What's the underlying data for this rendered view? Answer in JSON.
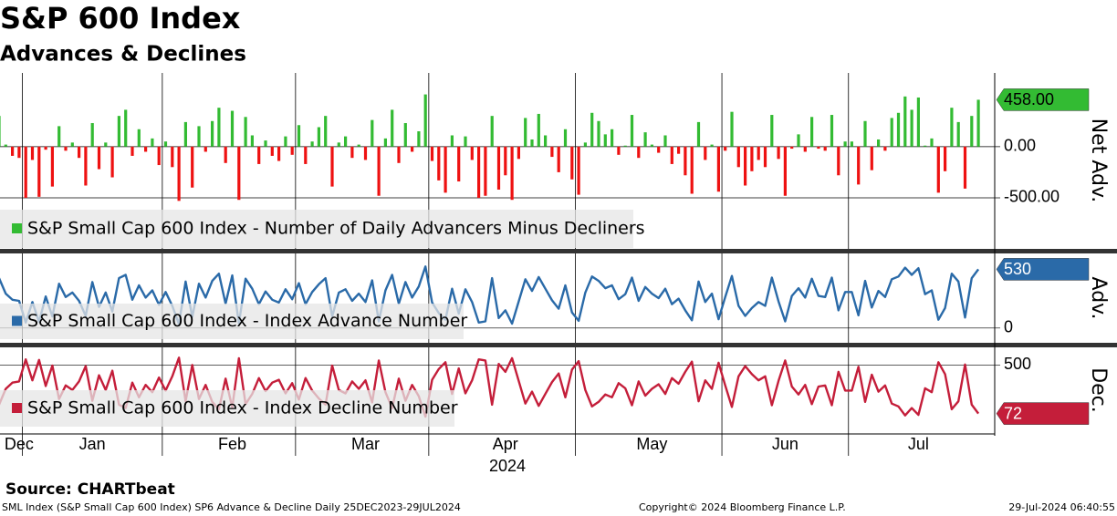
{
  "header": {
    "title": "S&P 600 Index",
    "subtitle": "Advances & Declines"
  },
  "footer": {
    "source": "Source: CHARTbeat",
    "left": "SML Index (S&P Small Cap 600 Index) SP6 Advance & Decline  Daily 25DEC2023-29JUL2024",
    "center": "Copyright© 2024 Bloomberg Finance L.P.",
    "right": "29-Jul-2024 06:40:55"
  },
  "chart_data": [
    {
      "type": "bar",
      "axis_title": "Net Adv.",
      "ylim": [
        -990,
        720
      ],
      "yticks": [
        {
          "value": 0,
          "label": "0.00"
        },
        {
          "value": -500,
          "label": "-500.00"
        }
      ],
      "grid": true,
      "series": [
        {
          "name": "S&P Small Cap 600 Index - Number of Daily Advancers Minus Decliners",
          "color": "#33bb33",
          "negative_color": "#ee1111",
          "label_color": "#000000",
          "values": [
            300,
            20,
            -90,
            -110,
            -500,
            -130,
            -490,
            -30,
            -390,
            200,
            -40,
            40,
            -110,
            -380,
            230,
            -220,
            40,
            -300,
            300,
            360,
            -90,
            170,
            -50,
            80,
            -180,
            50,
            -200,
            -530,
            240,
            -400,
            200,
            -50,
            250,
            380,
            -160,
            350,
            -520,
            290,
            110,
            -170,
            60,
            -90,
            -140,
            100,
            -80,
            210,
            -170,
            50,
            190,
            300,
            -390,
            40,
            100,
            -110,
            20,
            -130,
            260,
            -480,
            80,
            360,
            -160,
            230,
            -50,
            150,
            510,
            -140,
            -330,
            -450,
            110,
            -340,
            100,
            -130,
            -500,
            -480,
            300,
            -420,
            -280,
            -520,
            -120,
            280,
            70,
            320,
            110,
            -100,
            -250,
            170,
            -320,
            -470,
            40,
            330,
            250,
            120,
            170,
            -80,
            10,
            310,
            -110,
            140,
            20,
            -60,
            110,
            -170,
            -70,
            -280,
            -460,
            240,
            -130,
            20,
            -440,
            -40,
            340,
            -200,
            -380,
            -240,
            -130,
            -200,
            310,
            -120,
            -480,
            -20,
            120,
            -50,
            290,
            -20,
            -40,
            310,
            -280,
            50,
            50,
            -370,
            250,
            -230,
            70,
            -40,
            280,
            330,
            490,
            360,
            480,
            10,
            80,
            -450,
            -240,
            380,
            240,
            -410,
            300,
            458
          ],
          "value_labels": [
            null,
            null,
            null,
            null,
            null,
            null,
            null,
            null,
            null,
            null,
            null,
            null,
            null,
            null,
            null,
            null,
            null,
            null,
            null,
            null,
            null,
            null,
            null,
            null,
            null,
            null,
            null,
            null,
            null,
            null,
            null,
            null,
            null,
            null,
            null,
            null,
            null,
            null,
            null,
            null,
            null,
            null,
            null,
            null,
            null,
            null,
            null,
            null,
            null,
            null,
            null,
            null,
            null,
            null,
            null,
            null,
            null,
            null,
            null,
            null,
            null,
            null,
            null,
            null,
            null,
            null,
            null,
            null,
            null,
            null,
            null,
            null,
            null,
            null,
            null,
            null,
            null,
            null,
            null,
            null,
            null,
            null,
            null,
            null,
            null,
            null,
            null,
            null,
            null,
            null,
            null,
            null,
            null,
            null,
            null,
            null,
            null,
            null,
            null,
            null,
            null,
            null,
            null,
            null,
            null,
            null,
            null,
            null,
            null,
            null,
            null,
            null,
            null,
            null,
            null,
            null,
            null,
            null,
            null,
            null,
            null,
            null,
            null,
            null,
            null,
            null,
            null,
            null,
            null,
            null,
            null,
            null,
            null,
            null,
            null,
            null,
            null,
            null,
            null,
            null,
            null,
            null,
            null,
            null,
            null,
            null,
            null,
            "458.00"
          ]
        }
      ]
    },
    {
      "type": "line",
      "axis_title": "Adv.",
      "ylim": [
        -100,
        640
      ],
      "yticks": [
        0
      ],
      "grid": false,
      "series": [
        {
          "name": "S&P Small Cap 600 Index - Index Advance Number",
          "color": "#2a6aa8",
          "label_color": "#ffffff",
          "values": [
            450,
            310,
            255,
            245,
            50,
            235,
            55,
            285,
            105,
            400,
            280,
            320,
            245,
            110,
            415,
            190,
            320,
            150,
            450,
            480,
            255,
            385,
            275,
            340,
            210,
            325,
            200,
            35,
            420,
            100,
            400,
            275,
            425,
            490,
            220,
            475,
            40,
            445,
            355,
            215,
            330,
            255,
            230,
            350,
            260,
            405,
            215,
            325,
            395,
            450,
            105,
            320,
            350,
            245,
            310,
            235,
            430,
            60,
            340,
            480,
            220,
            415,
            275,
            375,
            555,
            230,
            135,
            75,
            355,
            130,
            350,
            235,
            50,
            60,
            450,
            90,
            160,
            40,
            240,
            440,
            335,
            460,
            355,
            250,
            175,
            385,
            140,
            65,
            320,
            465,
            425,
            360,
            385,
            260,
            305,
            455,
            245,
            370,
            310,
            270,
            355,
            215,
            265,
            160,
            70,
            420,
            235,
            310,
            80,
            280,
            470,
            200,
            110,
            180,
            235,
            200,
            455,
            240,
            60,
            290,
            360,
            275,
            445,
            290,
            280,
            455,
            160,
            325,
            325,
            115,
            425,
            185,
            335,
            280,
            440,
            465,
            545,
            480,
            540,
            305,
            340,
            75,
            180,
            490,
            420,
            95,
            450,
            530
          ]
        }
      ]
    },
    {
      "type": "line",
      "axis_title": "Dec.",
      "ylim": [
        -100,
        640
      ],
      "yticks": [
        500
      ],
      "grid": false,
      "xlabel": "2024",
      "categories": [
        null,
        null,
        null,
        "Dec",
        null,
        null,
        null,
        null,
        null,
        null,
        null,
        null,
        null,
        null,
        "Jan",
        null,
        null,
        null,
        null,
        null,
        null,
        null,
        null,
        null,
        null,
        null,
        null,
        null,
        null,
        null,
        null,
        null,
        null,
        null,
        null,
        "Feb",
        null,
        null,
        null,
        null,
        null,
        null,
        null,
        null,
        null,
        null,
        null,
        null,
        null,
        null,
        null,
        null,
        null,
        null,
        null,
        "Mar",
        null,
        null,
        null,
        null,
        null,
        null,
        null,
        null,
        null,
        null,
        null,
        null,
        null,
        null,
        null,
        null,
        null,
        null,
        null,
        null,
        "Apr",
        null,
        null,
        null,
        null,
        null,
        null,
        null,
        null,
        null,
        null,
        null,
        null,
        null,
        null,
        null,
        null,
        null,
        null,
        null,
        null,
        null,
        "May",
        null,
        null,
        null,
        null,
        null,
        null,
        null,
        null,
        null,
        null,
        null,
        null,
        null,
        null,
        null,
        null,
        null,
        null,
        null,
        "Jun",
        null,
        null,
        null,
        null,
        null,
        null,
        null,
        null,
        null,
        null,
        null,
        null,
        null,
        null,
        null,
        null,
        null,
        null,
        null,
        "Jul",
        null,
        null,
        null,
        null,
        null,
        null,
        null,
        null,
        null
      ],
      "series": [
        {
          "name": "S&P Small Cap 600 Index - Index Decline Number",
          "color": "#c41e3a",
          "label_color": "#ffffff",
          "values": [
            150,
            290,
            345,
            355,
            550,
            365,
            545,
            315,
            495,
            200,
            320,
            280,
            355,
            490,
            185,
            410,
            280,
            450,
            150,
            120,
            345,
            215,
            325,
            260,
            390,
            275,
            400,
            565,
            180,
            500,
            200,
            325,
            175,
            110,
            380,
            125,
            560,
            155,
            245,
            385,
            270,
            345,
            370,
            250,
            340,
            195,
            385,
            275,
            205,
            150,
            495,
            280,
            250,
            355,
            290,
            365,
            170,
            540,
            260,
            120,
            380,
            185,
            325,
            225,
            45,
            370,
            465,
            525,
            245,
            470,
            250,
            365,
            550,
            540,
            150,
            510,
            440,
            560,
            360,
            160,
            265,
            140,
            245,
            350,
            425,
            215,
            460,
            535,
            280,
            135,
            175,
            240,
            215,
            340,
            295,
            145,
            355,
            230,
            290,
            330,
            245,
            385,
            335,
            440,
            530,
            180,
            365,
            290,
            520,
            320,
            130,
            400,
            490,
            420,
            365,
            400,
            145,
            360,
            540,
            310,
            240,
            325,
            155,
            310,
            320,
            145,
            440,
            275,
            275,
            485,
            175,
            415,
            265,
            320,
            160,
            135,
            55,
            120,
            60,
            295,
            260,
            525,
            420,
            110,
            180,
            505,
            150,
            72
          ]
        }
      ]
    }
  ]
}
